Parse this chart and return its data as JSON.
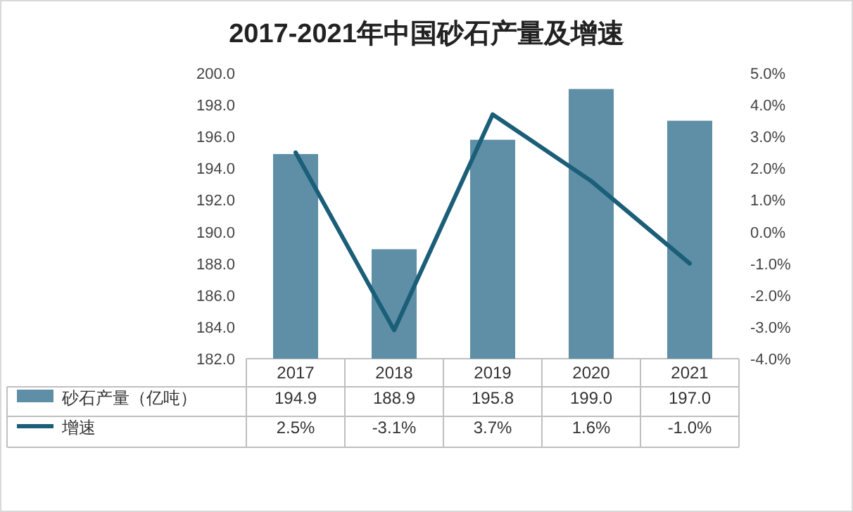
{
  "chart_data": {
    "type": "bar",
    "title": "2017-2021年中国砂石产量及增速",
    "categories": [
      "2017",
      "2018",
      "2019",
      "2020",
      "2021"
    ],
    "series": [
      {
        "name": "砂石产量（亿吨）",
        "color": "#5e8fa6",
        "values": [
          194.9,
          188.9,
          195.8,
          199.0,
          197.0
        ],
        "value_labels": [
          "194.9",
          "188.9",
          "195.8",
          "199.0",
          "197.0"
        ]
      },
      {
        "name": "增速",
        "type": "line",
        "axis": "y2",
        "color": "#1b5e78",
        "values": [
          2.5,
          -3.1,
          3.7,
          1.6,
          -1.0
        ],
        "value_labels": [
          "2.5%",
          "-3.1%",
          "3.7%",
          "1.6%",
          "-1.0%"
        ]
      }
    ],
    "ylim": [
      182,
      200
    ],
    "yticks": [
      {
        "value": 182,
        "label": "182.0"
      },
      {
        "value": 184,
        "label": "184.0"
      },
      {
        "value": 186,
        "label": "186.0"
      },
      {
        "value": 188,
        "label": "188.0"
      },
      {
        "value": 190,
        "label": "190.0"
      },
      {
        "value": 192,
        "label": "192.0"
      },
      {
        "value": 194,
        "label": "194.0"
      },
      {
        "value": 196,
        "label": "196.0"
      },
      {
        "value": 198,
        "label": "198.0"
      },
      {
        "value": 200,
        "label": "200.0"
      }
    ],
    "y2lim": [
      -4,
      5
    ],
    "y2ticks": [
      {
        "value": -4,
        "label": "-4.0%"
      },
      {
        "value": -3,
        "label": "-3.0%"
      },
      {
        "value": -2,
        "label": "-2.0%"
      },
      {
        "value": -1,
        "label": "-1.0%"
      },
      {
        "value": 0,
        "label": "0.0%"
      },
      {
        "value": 1,
        "label": "1.0%"
      },
      {
        "value": 2,
        "label": "2.0%"
      },
      {
        "value": 3,
        "label": "3.0%"
      },
      {
        "value": 4,
        "label": "4.0%"
      },
      {
        "value": 5,
        "label": "5.0%"
      }
    ],
    "legend": "bottom",
    "grid": false
  }
}
